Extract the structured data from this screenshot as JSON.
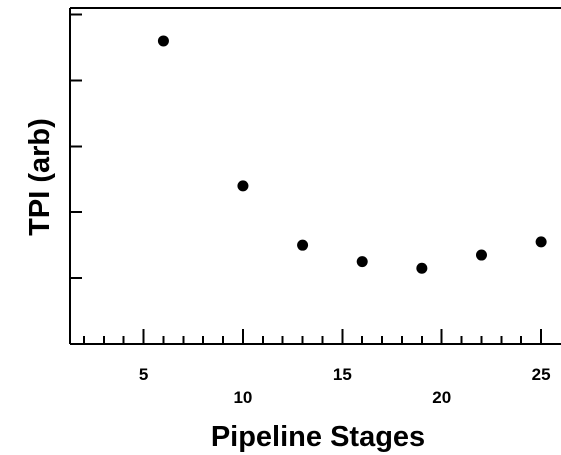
{
  "chart_data": {
    "type": "scatter",
    "title": "",
    "xlabel": "Pipeline Stages",
    "ylabel": "TPI (arb)",
    "xlim": [
      1.3,
      26
    ],
    "ylim": [
      0,
      5.1
    ],
    "x": [
      6,
      10,
      13,
      16,
      19,
      22,
      25
    ],
    "y": [
      4.6,
      2.4,
      1.5,
      1.25,
      1.15,
      1.35,
      1.55
    ],
    "x_ticks_major": [
      5,
      10,
      15,
      20,
      25
    ],
    "x_ticks_minor": [
      2,
      3,
      4,
      6,
      7,
      8,
      9,
      11,
      12,
      13,
      14,
      16,
      17,
      18,
      19,
      21,
      22,
      23,
      24
    ],
    "x_tick_labels": [
      "5",
      "10",
      "15",
      "20",
      "25"
    ],
    "y_ticks": [
      1,
      2,
      3,
      4,
      5
    ],
    "y_tick_labels": [
      "",
      "",
      "",
      "",
      ""
    ],
    "grid": false,
    "legend": "none",
    "marker_color": "#000000"
  }
}
